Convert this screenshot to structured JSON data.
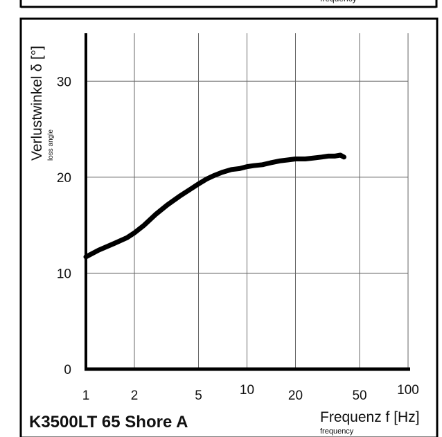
{
  "top_panel": {
    "partial_label": "frequency"
  },
  "chart_title": "K3500LT 65 Shore A",
  "chart_data": {
    "type": "line",
    "title": "K3500LT 65 Shore A",
    "xlabel": "Frequenz f [Hz]",
    "xlabel_sub": "frequency",
    "ylabel": "Verlustwinkel δ [°]",
    "ylabel_sub": "loss angle",
    "xscale": "log",
    "xlim": [
      1,
      100
    ],
    "ylim": [
      0,
      35
    ],
    "x_ticks": [
      1,
      2,
      5,
      10,
      20,
      50,
      100
    ],
    "y_ticks": [
      0,
      10,
      20,
      30
    ],
    "x_tick_labels": [
      "1",
      "2",
      "5",
      "10",
      "20",
      "50",
      "100"
    ],
    "y_tick_labels": [
      "0",
      "10",
      "20",
      "30"
    ],
    "grid": true,
    "series": [
      {
        "color": "#000000",
        "x": [
          1.0,
          1.2,
          1.5,
          1.8,
          2.0,
          2.3,
          2.7,
          3.2,
          3.8,
          4.5,
          5.0,
          5.6,
          6.3,
          7.0,
          8.0,
          9.0,
          10.0,
          11.0,
          12.5,
          14.0,
          16.0,
          18.0,
          20.0,
          23.0,
          26.0,
          29.0,
          32.0,
          35.0,
          38.0,
          40.0
        ],
        "y": [
          11.7,
          12.4,
          13.1,
          13.7,
          14.2,
          15.0,
          16.1,
          17.1,
          18.0,
          18.8,
          19.3,
          19.8,
          20.2,
          20.5,
          20.8,
          20.9,
          21.1,
          21.2,
          21.3,
          21.5,
          21.7,
          21.8,
          21.9,
          21.9,
          22.0,
          22.1,
          22.2,
          22.2,
          22.3,
          22.1
        ]
      }
    ]
  }
}
